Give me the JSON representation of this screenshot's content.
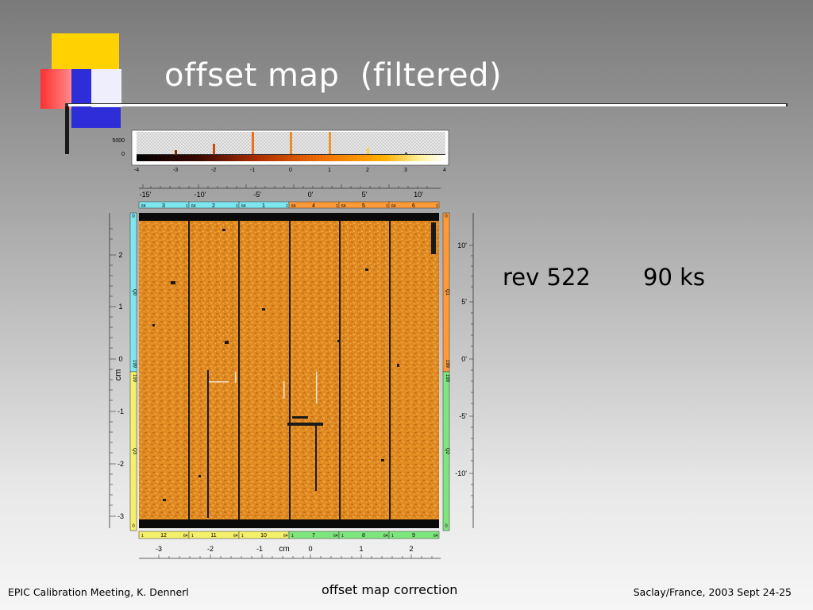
{
  "slide": {
    "title": "offset map  (filtered)",
    "rev": "rev 522",
    "duration": "90 ks"
  },
  "footer": {
    "left": "EPIC Calibration Meeting, K. Dennerl",
    "center": "offset map correction",
    "right": "Saclay/France, 2003 Sept 24-25"
  },
  "figure": {
    "histogram": {
      "y_ticks": [
        "5000",
        "0"
      ],
      "x_ticks": [
        "-4",
        "-3",
        "-2",
        "-1",
        "0",
        "1",
        "2",
        "3",
        "4"
      ]
    },
    "top_arcmin": [
      "-15'",
      "-10'",
      "-5'",
      "0'",
      "5'",
      "10'"
    ],
    "top_ccds": [
      {
        "left": "64",
        "num": "3",
        "right": "1"
      },
      {
        "left": "64",
        "num": "2",
        "right": "1"
      },
      {
        "left": "64",
        "num": "1",
        "right": "1"
      },
      {
        "left": "64",
        "num": "4",
        "right": "1"
      },
      {
        "left": "64",
        "num": "5",
        "right": "1"
      },
      {
        "left": "64",
        "num": "6",
        "right": "1"
      }
    ],
    "bottom_ccds": [
      {
        "left": "1",
        "num": "12",
        "right": "64"
      },
      {
        "left": "1",
        "num": "11",
        "right": "64"
      },
      {
        "left": "1",
        "num": "10",
        "right": "64"
      },
      {
        "left": "1",
        "num": "7",
        "right": "64"
      },
      {
        "left": "1",
        "num": "8",
        "right": "64"
      },
      {
        "left": "1",
        "num": "9",
        "right": "64"
      }
    ],
    "left_cm": [
      "2",
      "1",
      "0",
      "-1",
      "-2",
      "-3"
    ],
    "left_axis_label": "cm",
    "right_arcmin": [
      "10'",
      "5'",
      "0'",
      "-5'",
      "-10'"
    ],
    "bottom_cm": [
      "-3",
      "-2",
      "-1",
      "0",
      "1",
      "2"
    ],
    "bottom_axis_label": "cm",
    "quadrant_labels": {
      "top_left": "Q0",
      "bottom_left": "Q3",
      "top_right": "Q1",
      "bottom_right": "Q2"
    },
    "edge_labels": {
      "left_top": [
        "0",
        "199",
        "0",
        "199"
      ],
      "right": [
        "0",
        "199",
        "199",
        "0"
      ]
    },
    "colors": {
      "orange_map": "#e89a2c",
      "cyan": "#7de6ee",
      "orange_bar": "#ff9a38",
      "yellow": "#f4f06a",
      "green": "#7ee67e"
    }
  }
}
